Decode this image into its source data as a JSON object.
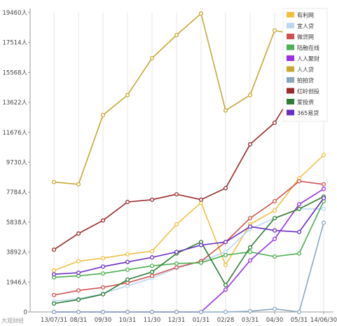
{
  "chart_data": {
    "type": "line",
    "title": "",
    "xlabel": "",
    "ylabel": "",
    "categories": [
      "13/07/31",
      "08/31",
      "09/30",
      "10/31",
      "11/30",
      "12/31",
      "01/31",
      "02/28",
      "03/31",
      "04/30",
      "05/31",
      "14/06/30"
    ],
    "y_ticks": [
      0,
      1946,
      3892,
      5838,
      7784,
      9730,
      11676,
      13622,
      15568,
      17514,
      19460
    ],
    "y_tick_labels": [
      "0",
      "1946人",
      "3892人",
      "5838人",
      "7784人",
      "9730人",
      "11676人",
      "13622人",
      "15568人",
      "17514人",
      "19460人"
    ],
    "ylim": [
      0,
      19460
    ],
    "grid": "vertical",
    "legend_position": "top-right",
    "series": [
      {
        "name": "有利网",
        "color": "#f0c040",
        "values": [
          2700,
          3300,
          3500,
          3750,
          3950,
          5700,
          7100,
          3050,
          5700,
          6600,
          8700,
          10200
        ]
      },
      {
        "name": "宜人贷",
        "color": "#b8d8f0",
        "values": [
          700,
          850,
          1200,
          1700,
          2200,
          2850,
          3300,
          3900,
          5400,
          6100,
          6700,
          6700
        ]
      },
      {
        "name": "微贷网",
        "color": "#d05050",
        "values": [
          1100,
          1400,
          1600,
          1900,
          2350,
          2900,
          3300,
          4550,
          6100,
          7200,
          8500,
          8300
        ]
      },
      {
        "name": "陆融在线",
        "color": "#4caf50",
        "values": [
          2250,
          2350,
          2500,
          2750,
          3000,
          3150,
          3200,
          3700,
          3900,
          3600,
          3800,
          7200
        ]
      },
      {
        "name": "人人聚财",
        "color": "#9b30e0",
        "values": [
          0,
          0,
          0,
          0,
          0,
          0,
          0,
          1450,
          3350,
          4750,
          7000,
          8000
        ]
      },
      {
        "name": "人人贷",
        "color": "#c8a830",
        "values": [
          8450,
          8300,
          12800,
          14100,
          16500,
          18000,
          19400,
          13100,
          14100,
          18300,
          18000,
          13300
        ]
      },
      {
        "name": "拍拍贷",
        "color": "#8aa8c0",
        "values": [
          0,
          0,
          0,
          0,
          0,
          0,
          0,
          0,
          50,
          200,
          0,
          5800
        ]
      },
      {
        "name": "红岭创投",
        "color": "#9a2a2a",
        "values": [
          4050,
          5100,
          5950,
          7150,
          7300,
          7650,
          7300,
          8050,
          10900,
          12300,
          14950,
          15000
        ]
      },
      {
        "name": "爱投资",
        "color": "#2e7d32",
        "values": [
          550,
          800,
          1150,
          2100,
          2600,
          3800,
          4550,
          1750,
          4200,
          6100,
          6700,
          7500
        ]
      },
      {
        "name": "365易贷",
        "color": "#6a2cc0",
        "values": [
          2450,
          2550,
          2950,
          3250,
          3550,
          3900,
          4350,
          4550,
          5550,
          5300,
          5200,
          7400
        ]
      }
    ]
  },
  "watermark": "大观财经"
}
